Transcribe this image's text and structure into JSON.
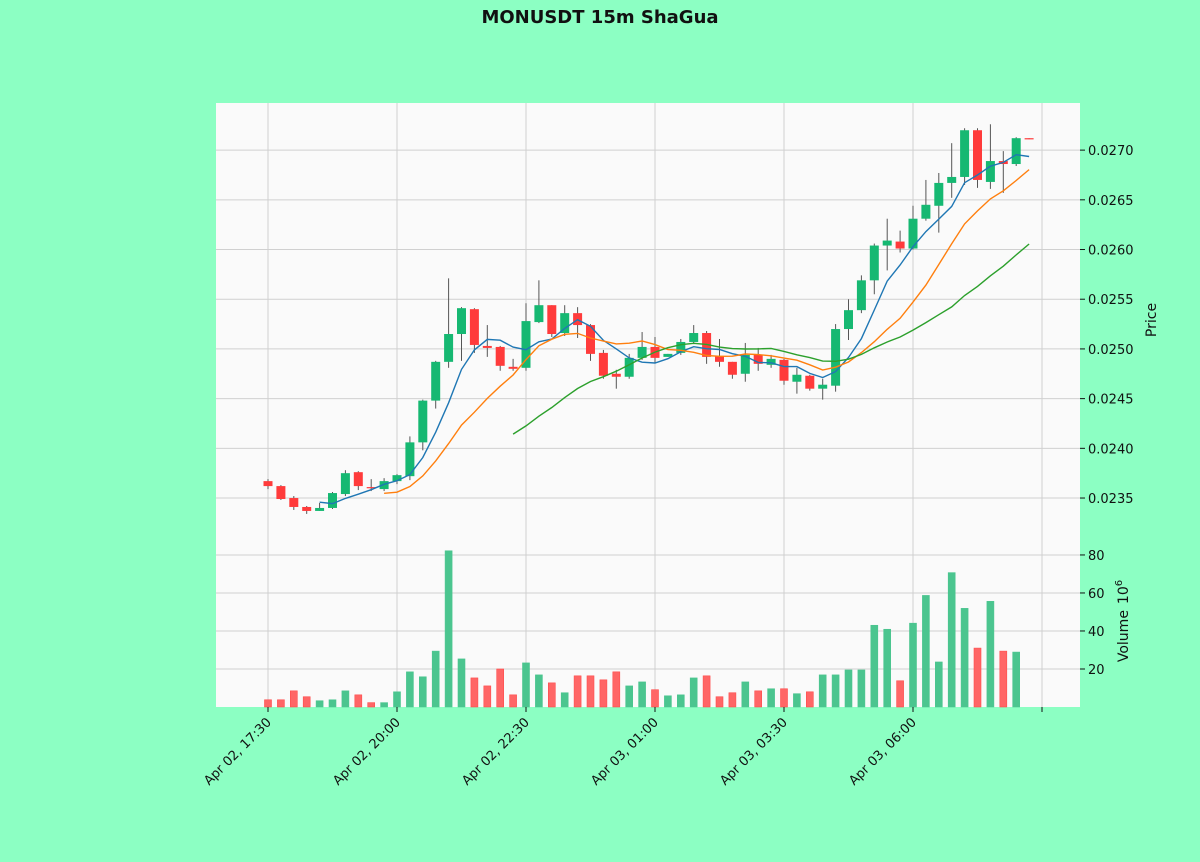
{
  "chart_data": {
    "type": "candlestick",
    "title": "MONUSDT 15m ShaGua",
    "ylabel": "Price",
    "volume_label": "Volume",
    "volume_exponent_label": "10",
    "volume_exponent": "6",
    "interval_minutes": 15,
    "first_time": "Apr 02, 17:30",
    "x_tick_labels": [
      "Apr 02, 17:30",
      "Apr 02, 20:00",
      "Apr 02, 22:30",
      "Apr 03, 01:00",
      "Apr 03, 03:30",
      "Apr 03, 06:00",
      ""
    ],
    "y_ticks": [
      "0.0235",
      "0.0240",
      "0.0245",
      "0.0250",
      "0.0255",
      "0.0260",
      "0.0265",
      "0.0270"
    ],
    "volume_ticks": [
      "20",
      "40",
      "60",
      "80"
    ],
    "ylim": [
      0.023128,
      0.027474
    ],
    "volume_ylim": [
      0,
      90.5
    ],
    "grid": true,
    "moving_averages": [
      5,
      10,
      20
    ],
    "colors": {
      "background": "#8cffc3",
      "panel": "#fafafa",
      "grid": "#d0d0d0",
      "up": "#16b872",
      "down": "#ff3b3b",
      "volume_up": "#4bc58f",
      "volume_down": "#ff6666",
      "ma": [
        "#1f77b4",
        "#ff7f0e",
        "#2ca02c"
      ]
    },
    "ohlc": [
      [
        0.02367,
        0.02369,
        0.02359,
        0.02362
      ],
      [
        0.02362,
        0.02363,
        0.02348,
        0.02349
      ],
      [
        0.0235,
        0.02352,
        0.02338,
        0.02341
      ],
      [
        0.02341,
        0.02342,
        0.02334,
        0.02337
      ],
      [
        0.02337,
        0.02345,
        0.02337,
        0.0234
      ],
      [
        0.0234,
        0.02356,
        0.02339,
        0.02355
      ],
      [
        0.02354,
        0.02378,
        0.02352,
        0.02375
      ],
      [
        0.02376,
        0.02377,
        0.02358,
        0.02362
      ],
      [
        0.02361,
        0.02369,
        0.02357,
        0.0236
      ],
      [
        0.02359,
        0.0237,
        0.02357,
        0.02367
      ],
      [
        0.02367,
        0.02374,
        0.02364,
        0.02373
      ],
      [
        0.02372,
        0.02412,
        0.02368,
        0.02406
      ],
      [
        0.02406,
        0.02449,
        0.02398,
        0.02448
      ],
      [
        0.02448,
        0.02488,
        0.0244,
        0.02487
      ],
      [
        0.02487,
        0.02571,
        0.02481,
        0.02515
      ],
      [
        0.02515,
        0.02542,
        0.02488,
        0.02541
      ],
      [
        0.0254,
        0.02541,
        0.02496,
        0.02504
      ],
      [
        0.02503,
        0.02524,
        0.02492,
        0.02501
      ],
      [
        0.02502,
        0.02503,
        0.02478,
        0.02483
      ],
      [
        0.02482,
        0.0249,
        0.02478,
        0.0248
      ],
      [
        0.02481,
        0.02546,
        0.02478,
        0.02528
      ],
      [
        0.02527,
        0.02569,
        0.02526,
        0.02544
      ],
      [
        0.02544,
        0.02544,
        0.02512,
        0.02515
      ],
      [
        0.02516,
        0.02544,
        0.02513,
        0.02536
      ],
      [
        0.02536,
        0.02542,
        0.02511,
        0.02524
      ],
      [
        0.02524,
        0.02525,
        0.02488,
        0.02495
      ],
      [
        0.02496,
        0.02499,
        0.0247,
        0.02473
      ],
      [
        0.02475,
        0.02479,
        0.0246,
        0.02472
      ],
      [
        0.02472,
        0.02495,
        0.0247,
        0.02491
      ],
      [
        0.02491,
        0.02517,
        0.02489,
        0.02502
      ],
      [
        0.02502,
        0.02512,
        0.02486,
        0.02491
      ],
      [
        0.02492,
        0.02495,
        0.02492,
        0.02495
      ],
      [
        0.02496,
        0.0251,
        0.02494,
        0.02507
      ],
      [
        0.02507,
        0.02524,
        0.02505,
        0.02516
      ],
      [
        0.02516,
        0.02518,
        0.02485,
        0.02492
      ],
      [
        0.02493,
        0.0251,
        0.02482,
        0.02487
      ],
      [
        0.02487,
        0.02487,
        0.0247,
        0.02474
      ],
      [
        0.02475,
        0.02506,
        0.02467,
        0.02494
      ],
      [
        0.02494,
        0.02501,
        0.02478,
        0.02485
      ],
      [
        0.02484,
        0.02494,
        0.02481,
        0.0249
      ],
      [
        0.02489,
        0.0249,
        0.02464,
        0.02468
      ],
      [
        0.02467,
        0.02481,
        0.02455,
        0.02474
      ],
      [
        0.02473,
        0.02474,
        0.02458,
        0.0246
      ],
      [
        0.0246,
        0.0247,
        0.02449,
        0.02464
      ],
      [
        0.02463,
        0.02525,
        0.02457,
        0.0252
      ],
      [
        0.0252,
        0.0255,
        0.02509,
        0.02539
      ],
      [
        0.02539,
        0.02574,
        0.02536,
        0.02569
      ],
      [
        0.02569,
        0.02606,
        0.02555,
        0.02604
      ],
      [
        0.02604,
        0.02631,
        0.02579,
        0.02609
      ],
      [
        0.02608,
        0.02619,
        0.02597,
        0.02601
      ],
      [
        0.02601,
        0.02644,
        0.026,
        0.02631
      ],
      [
        0.02631,
        0.0267,
        0.02629,
        0.02645
      ],
      [
        0.02644,
        0.02677,
        0.02617,
        0.02667
      ],
      [
        0.02667,
        0.02707,
        0.02652,
        0.02673
      ],
      [
        0.02673,
        0.02722,
        0.02665,
        0.0272
      ],
      [
        0.0272,
        0.02722,
        0.02662,
        0.0267
      ],
      [
        0.02668,
        0.02726,
        0.02661,
        0.02689
      ],
      [
        0.02689,
        0.02699,
        0.02657,
        0.02686
      ],
      [
        0.02686,
        0.02713,
        0.02684,
        0.02712
      ],
      [
        0.02712,
        0.02712,
        0.02711,
        0.02711
      ]
    ],
    "volume": [
      3.8,
      3.8,
      8.5,
      5.4,
      3.3,
      3.8,
      8.5,
      6.4,
      2.3,
      2.3,
      8.0,
      18.5,
      15.9,
      29.4,
      82.2,
      25.3,
      15.3,
      11.1,
      20.0,
      6.4,
      23.2,
      16.9,
      12.7,
      7.5,
      16.4,
      16.4,
      14.3,
      18.5,
      11.1,
      13.2,
      9.1,
      5.9,
      6.4,
      15.3,
      16.4,
      5.4,
      7.5,
      13.2,
      8.5,
      9.6,
      9.6,
      7.0,
      8.0,
      16.9,
      16.9,
      19.5,
      19.5,
      43.0,
      40.9,
      13.8,
      44.1,
      58.7,
      23.7,
      70.7,
      51.9,
      31.0,
      55.6,
      29.4,
      28.9,
      0
    ]
  }
}
